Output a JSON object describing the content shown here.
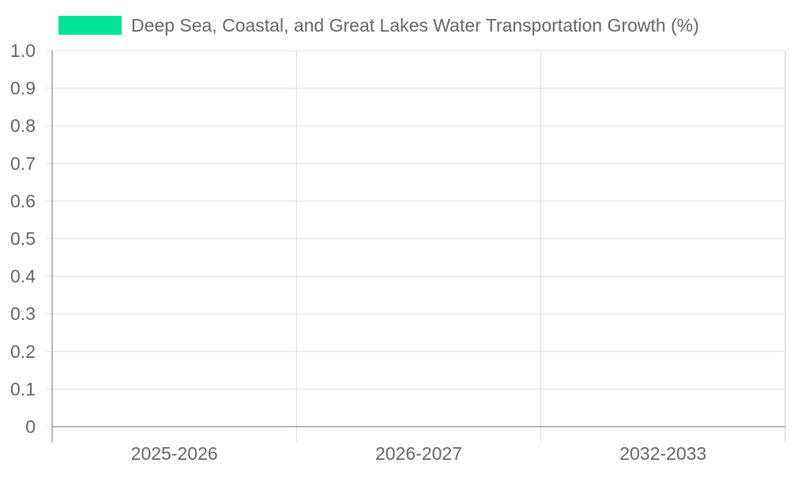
{
  "chart_data": {
    "type": "bar",
    "categories": [
      "2025-2026",
      "2026-2027",
      "2032-2033"
    ],
    "series": [
      {
        "name": "Deep Sea, Coastal, and Great Lakes Water Transportation Growth (%)",
        "values": [
          null,
          null,
          null
        ],
        "color": "#00e396"
      }
    ],
    "y_ticks": [
      "0",
      "0.1",
      "0.2",
      "0.3",
      "0.4",
      "0.5",
      "0.6",
      "0.7",
      "0.8",
      "0.9",
      "1.0"
    ],
    "ylim": [
      0,
      1
    ],
    "grid": true,
    "legend_position": "top"
  }
}
